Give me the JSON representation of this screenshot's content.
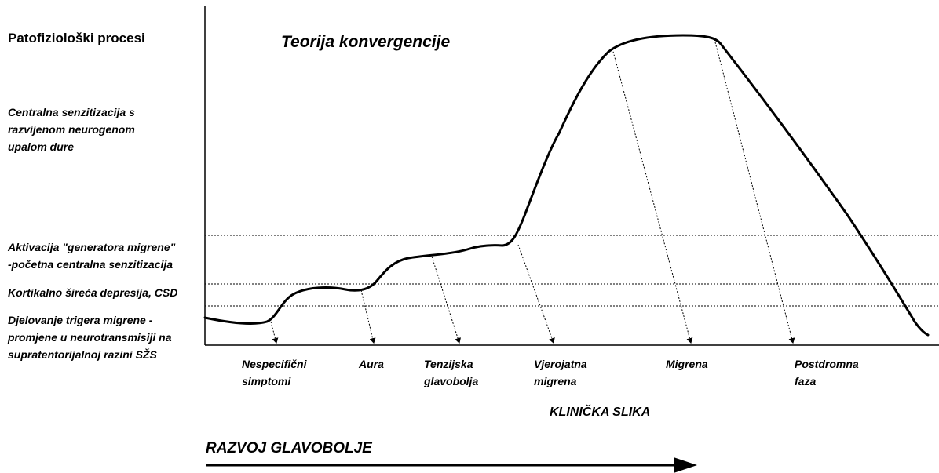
{
  "header": {
    "title": "Patofiziološki procesi",
    "diagram_title": "Teorija konvergencije"
  },
  "processes": [
    {
      "lines": [
        "Centralna senzitizacija s",
        "razvijenom neurogenom",
        "upalom dure"
      ]
    },
    {
      "lines": [
        "Aktivacija \"generatora migrene\"",
        "-početna centralna senzitizacija"
      ]
    },
    {
      "lines": [
        "Kortikalno šireća depresija, CSD"
      ]
    },
    {
      "lines": [
        "Djelovanje trigera migrene -",
        "promjene u neurotransmisiji na",
        "supratentorijalnoj razini SŽS"
      ]
    }
  ],
  "stages": [
    {
      "lines": [
        "Nespecifični",
        "simptomi"
      ]
    },
    {
      "lines": [
        "Aura"
      ]
    },
    {
      "lines": [
        "Tenzijska",
        "glavobolja"
      ]
    },
    {
      "lines": [
        "Vjerojatna",
        "migrena"
      ]
    },
    {
      "lines": [
        "Migrena"
      ]
    },
    {
      "lines": [
        "Postdromna",
        "faza"
      ]
    }
  ],
  "x_axis_label": "KLINIČKA SLIKA",
  "arrow_label": "RAZVOJ GLAVOBOLJE"
}
